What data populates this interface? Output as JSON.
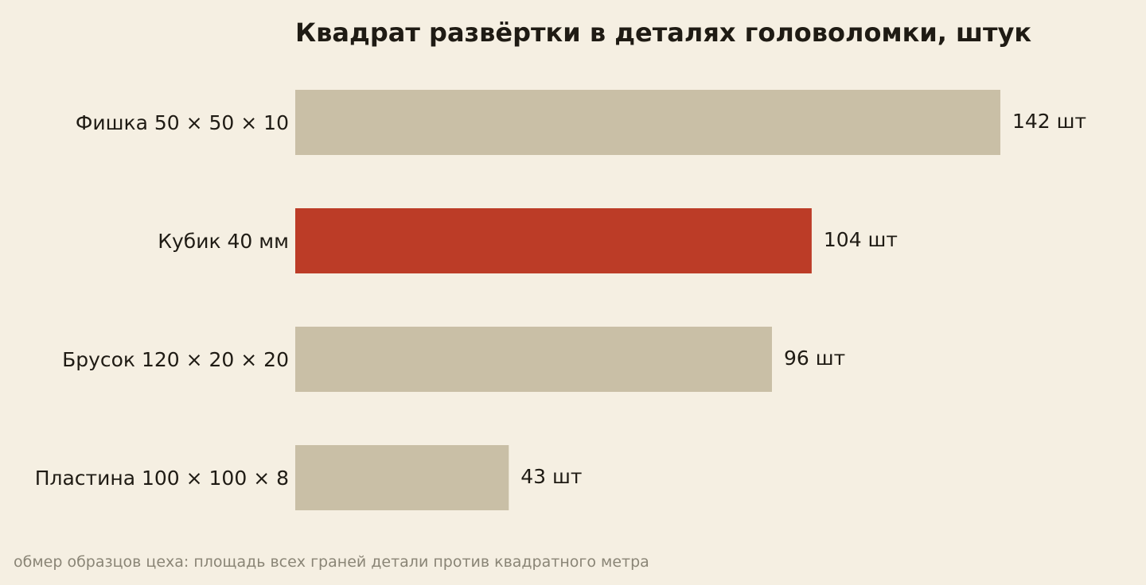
{
  "chart_data": {
    "type": "bar",
    "orientation": "horizontal",
    "title": "Квадрат развёртки в деталях головоломки, штук",
    "categories": [
      "Фишка 50 × 50 × 10",
      "Кубик 40 мм",
      "Брусок 120 × 20 × 20",
      "Пластина 100 × 100 × 8"
    ],
    "values": [
      142,
      104,
      96,
      43
    ],
    "value_labels": [
      "142 шт",
      "104 шт",
      "96 шт",
      "43 шт"
    ],
    "highlight_index": 1,
    "xlim": [
      0,
      142
    ],
    "grid": false,
    "xlabel": "",
    "ylabel": ""
  },
  "footnote": "обмер образцов цеха: площадь всех граней детали против квадратного метра",
  "colors": {
    "background": "#f5efe2",
    "bar": "#c9bfa6",
    "highlight": "#bc3c27",
    "text": "#1f1b14",
    "note": "#8a8576"
  }
}
